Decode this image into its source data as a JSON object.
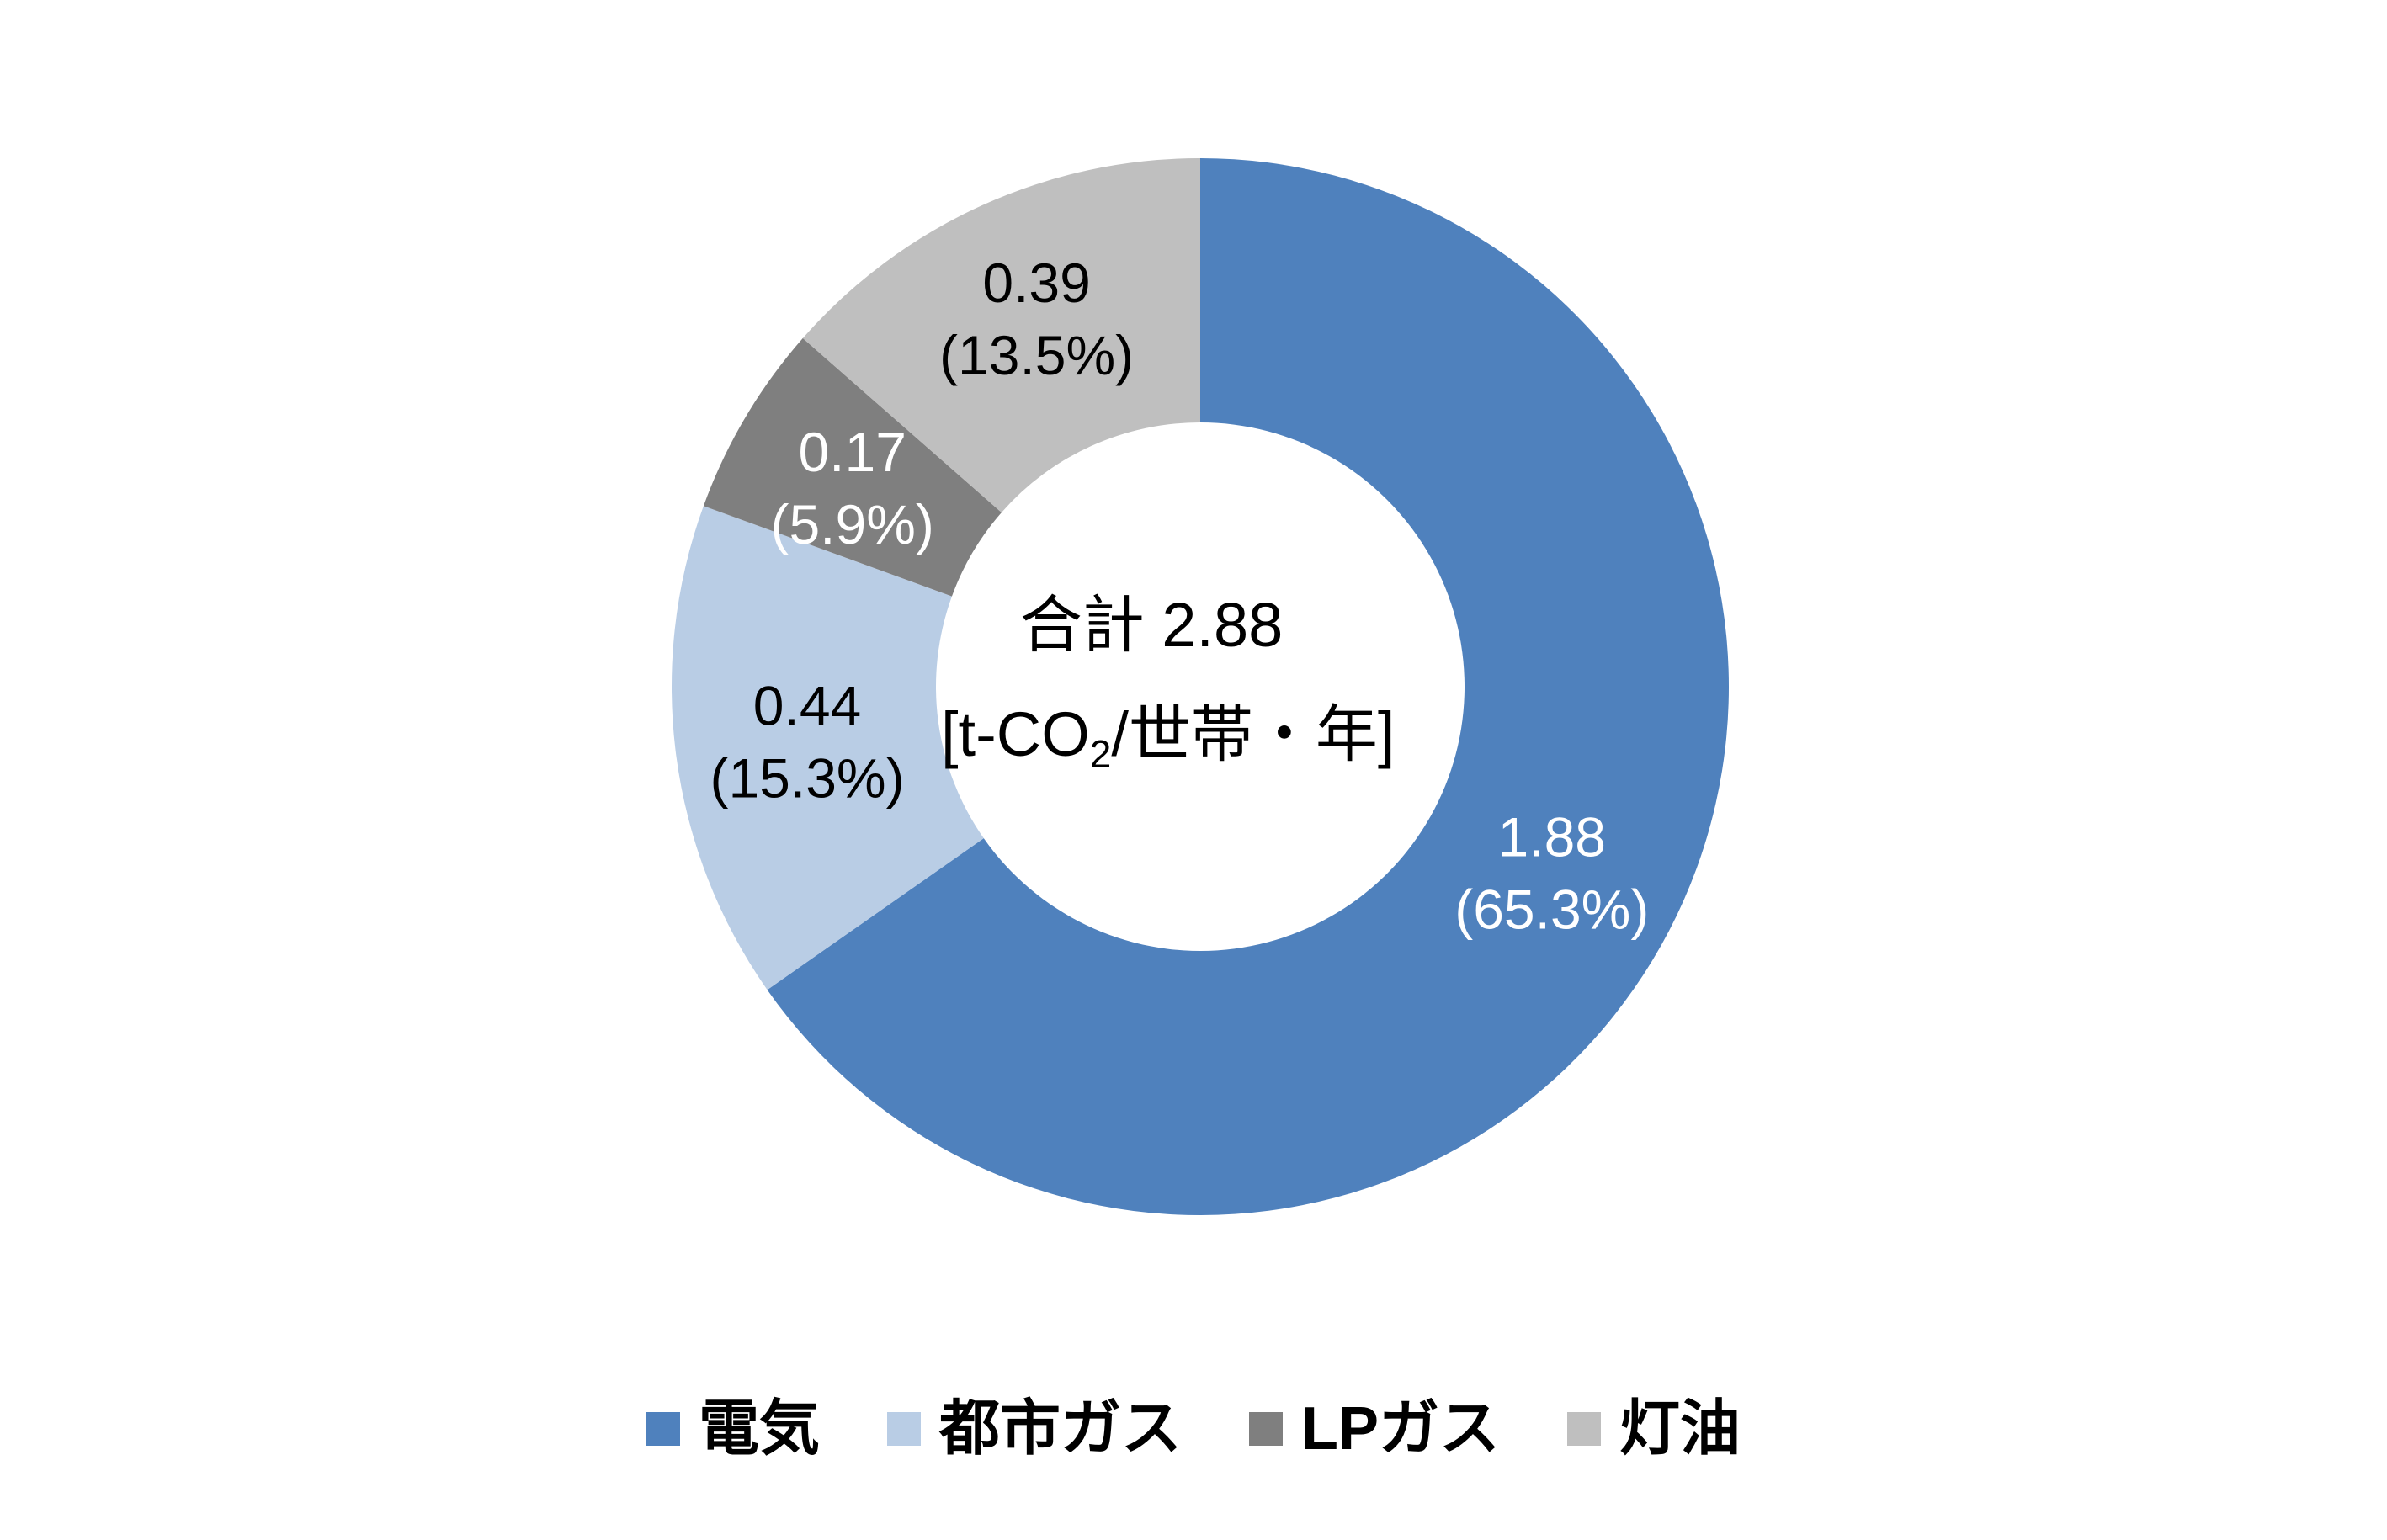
{
  "chart_data": {
    "type": "pie",
    "variant": "donut",
    "center_text": {
      "total": "合計 2.88",
      "unit_prefix": "[t-CO",
      "unit_sub": "2",
      "unit_suffix": "/世帯・年]"
    },
    "slices": [
      {
        "label": "電気",
        "value": 1.88,
        "percent": 65.3,
        "value_text": "1.88",
        "percent_text": "(65.3%)",
        "color": "#4F81BD",
        "label_color": "#FFFFFF"
      },
      {
        "label": "都市ガス",
        "value": 0.44,
        "percent": 15.3,
        "value_text": "0.44",
        "percent_text": "(15.3%)",
        "color": "#B9CDE5",
        "label_color": "#000000"
      },
      {
        "label": "LPガス",
        "value": 0.17,
        "percent": 5.9,
        "value_text": "0.17",
        "percent_text": "(5.9%)",
        "color": "#7F7F7F",
        "label_color": "#FFFFFF"
      },
      {
        "label": "灯油",
        "value": 0.39,
        "percent": 13.5,
        "value_text": "0.39",
        "percent_text": "(13.5%)",
        "color": "#BFBFBF",
        "label_color": "#000000"
      }
    ],
    "legend_position": "bottom"
  }
}
